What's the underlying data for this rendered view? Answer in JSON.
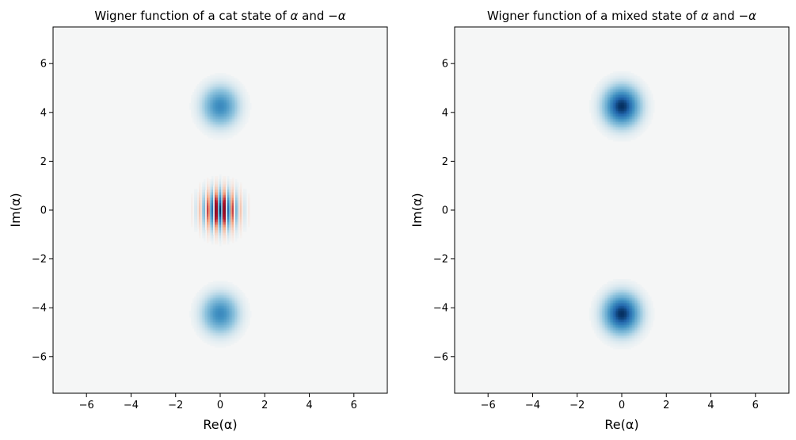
{
  "chart_data": [
    {
      "type": "heatmap",
      "title_parts": [
        "Wigner function of a cat state of ",
        "α",
        " and ",
        "−α"
      ],
      "xlabel": "Re(α)",
      "ylabel": "Im(α)",
      "xlim": [
        -7.5,
        7.5
      ],
      "ylim": [
        -7.5,
        7.5
      ],
      "xticks": [
        -6,
        -4,
        -2,
        0,
        2,
        4,
        6
      ],
      "yticks": [
        -6,
        -4,
        -2,
        0,
        2,
        4,
        6
      ],
      "xtick_labels": [
        "−6",
        "−4",
        "−2",
        "0",
        "2",
        "4",
        "6"
      ],
      "ytick_labels": [
        "−6",
        "−4",
        "−2",
        "0",
        "2",
        "4",
        "6"
      ],
      "colormap": "RdBu",
      "state": "cat",
      "alpha": [
        0,
        4.25
      ],
      "peaks": [
        {
          "re": 0,
          "im": 4.25
        },
        {
          "re": 0,
          "im": -4.25
        },
        {
          "re": 0,
          "im": 0,
          "kind": "interference fringes"
        }
      ],
      "grid": false
    },
    {
      "type": "heatmap",
      "title_parts": [
        "Wigner function of a mixed state of ",
        "α",
        " and ",
        "−α"
      ],
      "xlabel": "Re(α)",
      "ylabel": "Im(α)",
      "xlim": [
        -7.5,
        7.5
      ],
      "ylim": [
        -7.5,
        7.5
      ],
      "xticks": [
        -6,
        -4,
        -2,
        0,
        2,
        4,
        6
      ],
      "yticks": [
        -6,
        -4,
        -2,
        0,
        2,
        4,
        6
      ],
      "xtick_labels": [
        "−6",
        "−4",
        "−2",
        "0",
        "2",
        "4",
        "6"
      ],
      "ytick_labels": [
        "−6",
        "−4",
        "−2",
        "0",
        "2",
        "4",
        "6"
      ],
      "colormap": "RdBu",
      "state": "mixed",
      "alpha": [
        0,
        4.25
      ],
      "peaks": [
        {
          "re": 0,
          "im": 4.25
        },
        {
          "re": 0,
          "im": -4.25
        }
      ],
      "grid": false
    }
  ],
  "colors": {
    "background": "#f5f6f6",
    "positive": "#053061",
    "negative": "#67001f"
  }
}
